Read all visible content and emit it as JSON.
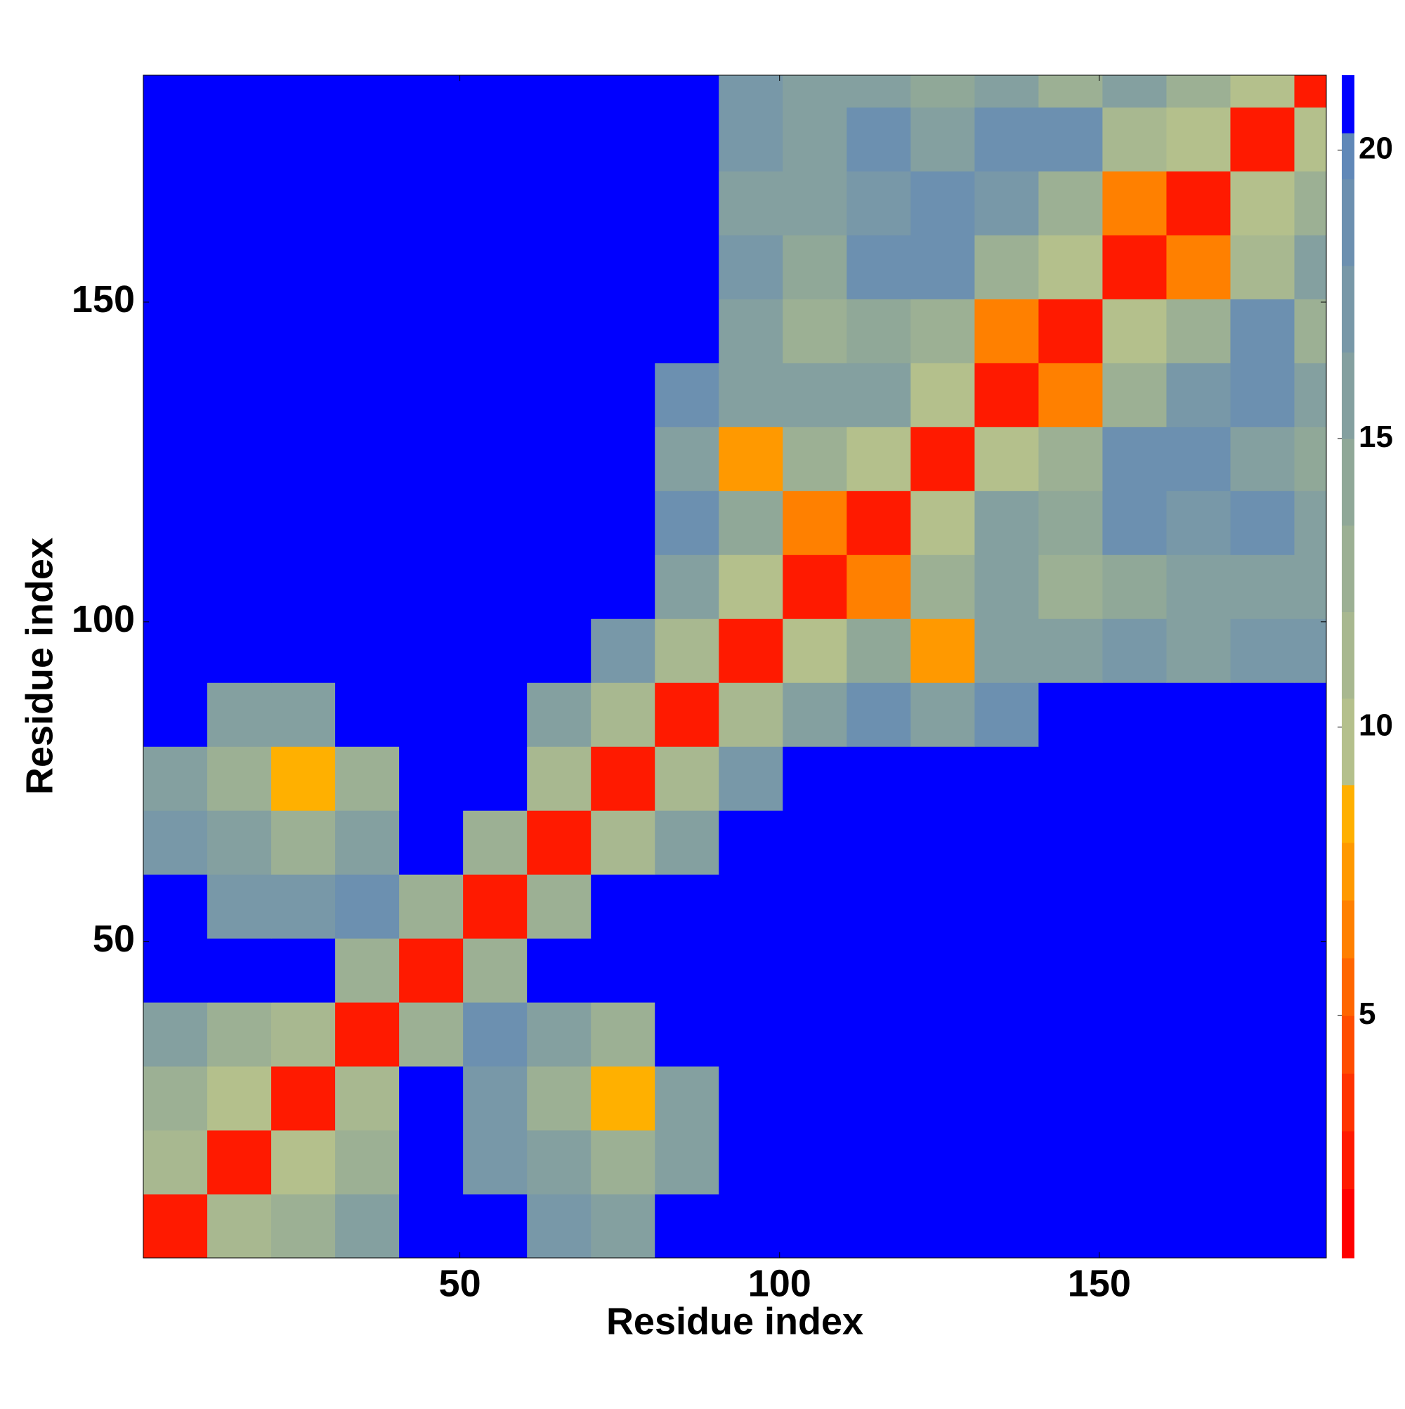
{
  "chart_data": {
    "type": "heatmap",
    "xlabel": "Residue index",
    "ylabel": "Residue index",
    "xlim": [
      0.5,
      185.5
    ],
    "ylim": [
      0.5,
      185.5
    ],
    "xticks": [
      50,
      100,
      150
    ],
    "yticks": [
      50,
      100,
      150
    ],
    "xbins": [
      0.5,
      10.5,
      20.5,
      30.5,
      40.5,
      50.5,
      60.5,
      70.5,
      80.5,
      90.5,
      100.5,
      110.5,
      120.5,
      130.5,
      140.5,
      150.5,
      160.5,
      170.5,
      180.5,
      185.5
    ],
    "ybins": [
      0.5,
      10.5,
      20.5,
      30.5,
      40.5,
      50.5,
      60.5,
      70.5,
      80.5,
      90.5,
      100.5,
      110.5,
      120.5,
      130.5,
      140.5,
      150.5,
      160.5,
      170.5,
      180.5,
      185.5
    ],
    "z": [
      [
        2,
        11,
        12,
        15,
        21,
        21,
        17,
        16,
        21,
        21,
        21,
        21,
        21,
        21,
        21,
        21,
        21,
        21,
        21
      ],
      [
        11,
        2,
        9,
        13,
        21,
        17,
        15,
        12,
        16,
        21,
        21,
        21,
        21,
        21,
        21,
        21,
        21,
        21,
        21
      ],
      [
        12,
        9,
        2,
        11,
        21,
        17,
        12,
        8,
        16,
        21,
        21,
        21,
        21,
        21,
        21,
        21,
        21,
        21,
        21
      ],
      [
        15,
        13,
        11,
        2,
        12,
        19,
        15,
        13,
        21,
        21,
        21,
        21,
        21,
        21,
        21,
        21,
        21,
        21,
        21
      ],
      [
        21,
        21,
        21,
        12,
        2,
        12,
        21,
        21,
        21,
        21,
        21,
        21,
        21,
        21,
        21,
        21,
        21,
        21,
        21
      ],
      [
        21,
        17,
        17,
        19,
        12,
        2,
        12,
        21,
        21,
        21,
        21,
        21,
        21,
        21,
        21,
        21,
        21,
        21,
        21
      ],
      [
        17,
        15,
        12,
        15,
        21,
        12,
        2,
        11,
        16,
        21,
        21,
        21,
        21,
        21,
        21,
        21,
        21,
        21,
        21
      ],
      [
        16,
        12,
        8,
        13,
        21,
        21,
        11,
        2,
        11,
        17,
        21,
        21,
        21,
        21,
        21,
        21,
        21,
        21,
        21
      ],
      [
        21,
        16,
        16,
        21,
        21,
        21,
        16,
        11,
        2,
        11,
        16,
        18,
        16,
        19,
        21,
        21,
        21,
        21,
        21
      ],
      [
        21,
        21,
        21,
        21,
        21,
        21,
        21,
        17,
        11,
        2,
        9,
        14,
        7,
        16,
        16,
        17,
        16,
        17,
        17
      ],
      [
        21,
        21,
        21,
        21,
        21,
        21,
        21,
        21,
        16,
        9,
        2,
        6,
        13,
        15,
        12,
        14,
        15,
        15,
        16
      ],
      [
        21,
        21,
        21,
        21,
        21,
        21,
        21,
        21,
        18,
        14,
        6,
        2,
        9,
        15,
        14,
        18,
        17,
        18,
        15
      ],
      [
        21,
        21,
        21,
        21,
        21,
        21,
        21,
        21,
        16,
        7,
        13,
        9,
        2,
        10,
        13,
        18,
        18,
        15,
        14
      ],
      [
        21,
        21,
        21,
        21,
        21,
        21,
        21,
        21,
        19,
        16,
        15,
        15,
        10,
        2,
        6,
        12,
        17,
        18,
        16
      ],
      [
        21,
        21,
        21,
        21,
        21,
        21,
        21,
        21,
        21,
        16,
        12,
        14,
        13,
        6,
        2,
        10,
        12,
        18,
        13
      ],
      [
        21,
        21,
        21,
        21,
        21,
        21,
        21,
        21,
        21,
        17,
        14,
        18,
        18,
        12,
        10,
        2,
        6,
        11,
        15
      ],
      [
        21,
        21,
        21,
        21,
        21,
        21,
        21,
        21,
        21,
        16,
        15,
        17,
        18,
        17,
        12,
        6,
        2,
        9,
        12
      ],
      [
        21,
        21,
        21,
        21,
        21,
        21,
        21,
        21,
        21,
        17,
        15,
        18,
        15,
        18,
        18,
        11,
        9,
        2,
        9
      ],
      [
        21,
        21,
        21,
        21,
        21,
        21,
        21,
        21,
        21,
        17,
        16,
        15,
        14,
        16,
        13,
        15,
        12,
        9,
        2
      ]
    ],
    "colorbar": {
      "zlim": [
        0.8,
        21.3
      ],
      "ticks": [
        5,
        10,
        15,
        20
      ],
      "levels": [
        0.8,
        2,
        3,
        4,
        5,
        6,
        7,
        8,
        9,
        10.5,
        12,
        13.5,
        15,
        16.5,
        18,
        19.5,
        20.3,
        21.3
      ],
      "colors": [
        "#ff0000",
        "#ff1a00",
        "#ff3300",
        "#ff4d00",
        "#ff6600",
        "#ff8000",
        "#ff9900",
        "#ffb000",
        "#b4c08c",
        "#a8b890",
        "#9cb094",
        "#90a898",
        "#84a0a0",
        "#7898a8",
        "#6c90b0",
        "#6088b8",
        "#0000ff"
      ]
    }
  }
}
